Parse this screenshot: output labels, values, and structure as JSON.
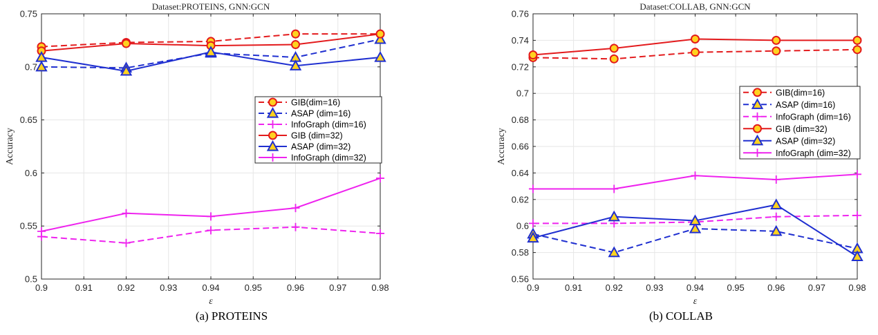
{
  "legend_entries": [
    {
      "label": "GIB(dim=16)",
      "color": "#e31a1c",
      "dashed": true,
      "marker": "circle"
    },
    {
      "label": "ASAP (dim=16)",
      "color": "#1f2fd0",
      "dashed": true,
      "marker": "triangle"
    },
    {
      "label": "InfoGraph (dim=16)",
      "color": "#ee22ee",
      "dashed": true,
      "marker": "plus"
    },
    {
      "label": "GIB (dim=32)",
      "color": "#e31a1c",
      "dashed": false,
      "marker": "circle"
    },
    {
      "label": "ASAP (dim=32)",
      "color": "#1f2fd0",
      "dashed": false,
      "marker": "triangle"
    },
    {
      "label": "InfoGraph (dim=32)",
      "color": "#ee22ee",
      "dashed": false,
      "marker": "plus"
    }
  ],
  "chart_data": [
    {
      "type": "line",
      "title": "Dataset:PROTEINS, GNN:GCN",
      "caption": "(a) PROTEINS",
      "xlabel": "ε",
      "ylabel": "Accuracy",
      "x": [
        0.9,
        0.92,
        0.94,
        0.96,
        0.98
      ],
      "xlim": [
        0.9,
        0.98
      ],
      "ylim": [
        0.5,
        0.75
      ],
      "xticks": [
        "0.9",
        "0.91",
        "0.92",
        "0.93",
        "0.94",
        "0.95",
        "0.96",
        "0.97",
        "0.98"
      ],
      "yticks": [
        "0.5",
        "0.55",
        "0.6",
        "0.65",
        "0.7",
        "0.75"
      ],
      "grid": true,
      "legend_position": "right",
      "series": [
        {
          "name": "GIB(dim=16)",
          "values": [
            0.719,
            0.723,
            0.724,
            0.731,
            0.731
          ]
        },
        {
          "name": "ASAP (dim=16)",
          "values": [
            0.7,
            0.699,
            0.713,
            0.709,
            0.726
          ]
        },
        {
          "name": "InfoGraph (dim=16)",
          "values": [
            0.54,
            0.534,
            0.546,
            0.549,
            0.543
          ]
        },
        {
          "name": "GIB (dim=32)",
          "values": [
            0.715,
            0.722,
            0.72,
            0.721,
            0.731
          ]
        },
        {
          "name": "ASAP (dim=32)",
          "values": [
            0.709,
            0.696,
            0.714,
            0.701,
            0.709
          ]
        },
        {
          "name": "InfoGraph (dim=32)",
          "values": [
            0.545,
            0.562,
            0.559,
            0.567,
            0.595
          ]
        }
      ]
    },
    {
      "type": "line",
      "title": "Dataset:COLLAB, GNN:GCN",
      "caption": "(b) COLLAB",
      "xlabel": "ε",
      "ylabel": "Accuracy",
      "x": [
        0.9,
        0.92,
        0.94,
        0.96,
        0.98
      ],
      "xlim": [
        0.9,
        0.98
      ],
      "ylim": [
        0.56,
        0.76
      ],
      "xticks": [
        "0.9",
        "0.91",
        "0.92",
        "0.93",
        "0.94",
        "0.95",
        "0.96",
        "0.97",
        "0.98"
      ],
      "yticks": [
        "0.56",
        "0.58",
        "0.6",
        "0.62",
        "0.64",
        "0.66",
        "0.68",
        "0.7",
        "0.72",
        "0.74",
        "0.76"
      ],
      "grid": true,
      "legend_position": "right",
      "series": [
        {
          "name": "GIB(dim=16)",
          "values": [
            0.727,
            0.726,
            0.731,
            0.732,
            0.733
          ]
        },
        {
          "name": "ASAP (dim=16)",
          "values": [
            0.594,
            0.58,
            0.598,
            0.596,
            0.583
          ]
        },
        {
          "name": "InfoGraph (dim=16)",
          "values": [
            0.602,
            0.602,
            0.603,
            0.607,
            0.608
          ]
        },
        {
          "name": "GIB (dim=32)",
          "values": [
            0.729,
            0.734,
            0.741,
            0.74,
            0.74
          ]
        },
        {
          "name": "ASAP (dim=32)",
          "values": [
            0.591,
            0.607,
            0.604,
            0.616,
            0.577
          ]
        },
        {
          "name": "InfoGraph (dim=32)",
          "values": [
            0.628,
            0.628,
            0.638,
            0.635,
            0.639
          ]
        }
      ]
    }
  ]
}
